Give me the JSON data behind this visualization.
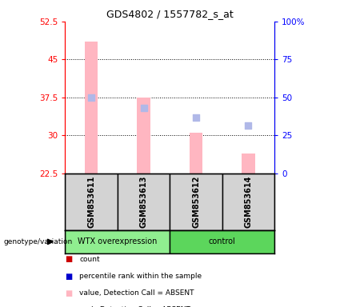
{
  "title": "GDS4802 / 1557782_s_at",
  "samples": [
    "GSM853611",
    "GSM853613",
    "GSM853612",
    "GSM853614"
  ],
  "ylim_left": [
    22.5,
    52.5
  ],
  "ylim_right": [
    0,
    100
  ],
  "yticks_left": [
    22.5,
    30,
    37.5,
    45,
    52.5
  ],
  "yticks_right": [
    0,
    25,
    50,
    75,
    100
  ],
  "ytick_labels_left": [
    "22.5",
    "30",
    "37.5",
    "45",
    "52.5"
  ],
  "ytick_labels_right": [
    "0",
    "25",
    "50",
    "75",
    "100%"
  ],
  "bar_values": [
    48.5,
    37.5,
    30.5,
    26.5
  ],
  "bar_color": "#FFB6C1",
  "rank_values": [
    37.5,
    35.5,
    33.5,
    32.0
  ],
  "rank_color": "#B0B8E8",
  "grid_yticks": [
    30,
    37.5,
    45
  ],
  "left_yaxis_color": "red",
  "right_yaxis_color": "blue",
  "genotype_label": "genotype/variation",
  "wtx_color": "#90EE90",
  "ctrl_color": "#5CD65C",
  "sample_box_color": "#D3D3D3",
  "legend_items": [
    {
      "label": "count",
      "color": "#CC0000"
    },
    {
      "label": "percentile rank within the sample",
      "color": "#0000CC"
    },
    {
      "label": "value, Detection Call = ABSENT",
      "color": "#FFB6C1"
    },
    {
      "label": "rank, Detection Call = ABSENT",
      "color": "#B0B8E8"
    }
  ]
}
